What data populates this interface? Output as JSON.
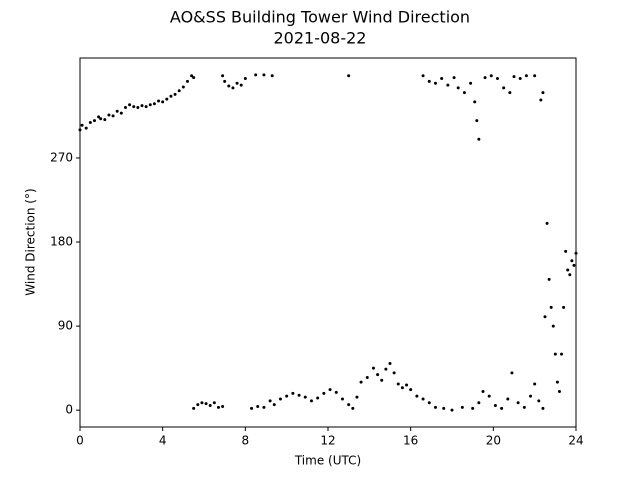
{
  "chart_data": {
    "type": "scatter",
    "title": "AO&SS Building Tower Wind Direction",
    "subtitle": "2021-08-22",
    "x_label": "Time (UTC)",
    "y_label": "Wind Direction (°)",
    "color": "#000000",
    "xlim": [
      0,
      24
    ],
    "ylim": [
      -18,
      377
    ],
    "xticks": [
      0,
      4,
      8,
      12,
      16,
      20,
      24
    ],
    "yticks": [
      0,
      90,
      180,
      270
    ],
    "grid": false,
    "series": [
      {
        "name": "Wind Direction",
        "color": "#000000",
        "x": [
          0,
          0.1,
          0.3,
          0.5,
          0.7,
          0.9,
          1.0,
          1.2,
          1.4,
          1.6,
          1.8,
          2.0,
          2.2,
          2.4,
          2.6,
          2.8,
          3.0,
          3.2,
          3.4,
          3.6,
          3.8,
          4.0,
          4.2,
          4.4,
          4.6,
          4.8,
          5.0,
          5.2,
          5.4,
          5.5,
          5.5,
          5.7,
          5.9,
          6.1,
          6.3,
          6.5,
          6.7,
          6.9,
          6.9,
          7.0,
          7.2,
          7.4,
          7.6,
          7.8,
          8.0,
          8.5,
          8.9,
          9.3,
          8.3,
          8.6,
          8.9,
          9.2,
          9.4,
          9.7,
          10.0,
          10.3,
          10.6,
          10.9,
          11.2,
          11.5,
          11.8,
          12.1,
          12.4,
          12.7,
          13.0,
          13.2,
          13.4,
          13,
          13.6,
          13.9,
          14.2,
          14.4,
          14.6,
          14.8,
          15.0,
          15.2,
          15.4,
          15.6,
          15.8,
          16.0,
          16.3,
          16.6,
          16.9,
          17.2,
          17.6,
          18.0,
          18.5,
          19.0,
          16.6,
          16.9,
          17.2,
          17.5,
          17.8,
          18.1,
          18.3,
          18.6,
          18.9,
          19.1,
          19.2,
          19.3,
          19.6,
          19.9,
          20.2,
          20.5,
          20.8,
          21.0,
          21.3,
          21.6,
          22.0,
          22.3,
          22.4,
          19.3,
          19.5,
          19.8,
          20.1,
          20.4,
          20.7,
          20.9,
          21.2,
          21.5,
          21.8,
          22.0,
          22.2,
          22.4,
          22.5,
          22.6,
          22.7,
          22.8,
          22.9,
          23.0,
          23.1,
          23.2,
          23.3,
          23.4,
          23.5,
          23.6,
          23.7,
          23.8,
          23.9,
          24.0
        ],
        "values": [
          300,
          305,
          302,
          308,
          310,
          314,
          312,
          311,
          316,
          315,
          320,
          318,
          324,
          327,
          325,
          324,
          326,
          325,
          327,
          328,
          331,
          330,
          333,
          336,
          338,
          342,
          346,
          352,
          358,
          356,
          2,
          6,
          8,
          7,
          5,
          8,
          3,
          4,
          358,
          352,
          347,
          345,
          350,
          348,
          355,
          359,
          359,
          358,
          2,
          4,
          3,
          10,
          6,
          12,
          15,
          18,
          16,
          14,
          10,
          13,
          18,
          22,
          19,
          12,
          6,
          2,
          14,
          358,
          30,
          35,
          45,
          38,
          32,
          44,
          50,
          40,
          28,
          24,
          27,
          22,
          15,
          12,
          8,
          3,
          2,
          0,
          3,
          2,
          358,
          352,
          350,
          355,
          348,
          356,
          345,
          340,
          350,
          330,
          310,
          290,
          356,
          358,
          355,
          345,
          340,
          357,
          355,
          358,
          358,
          332,
          340,
          8,
          20,
          15,
          5,
          2,
          12,
          40,
          8,
          3,
          15,
          28,
          10,
          2,
          100,
          200,
          140,
          110,
          90,
          60,
          30,
          20,
          60,
          110,
          170,
          150,
          145,
          160,
          155,
          168
        ]
      }
    ]
  }
}
